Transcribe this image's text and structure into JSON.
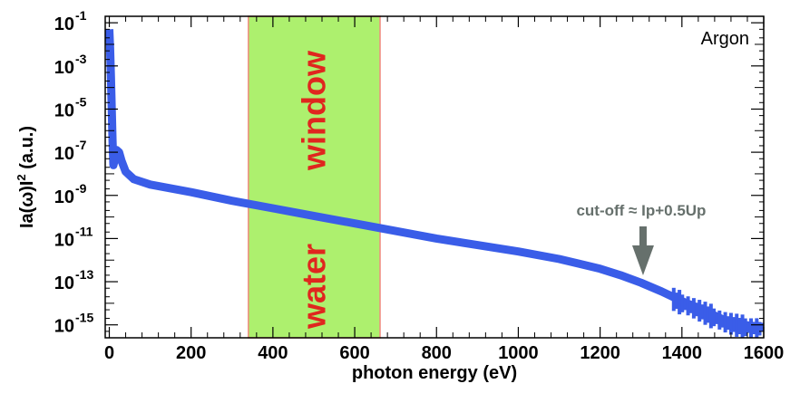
{
  "chart_data": {
    "type": "line",
    "x_label": "photon energy (eV)",
    "y_label_main": "Ia(ω)I",
    "y_label_sup": "2",
    "y_label_tail": " (a.u.)",
    "y_scale": "log",
    "xlim": [
      -10,
      1600
    ],
    "ylim_log10": [
      -15.6,
      -0.7
    ],
    "x_ticks": [
      0,
      200,
      400,
      600,
      800,
      1000,
      1200,
      1400,
      1600
    ],
    "x_tick_labels": [
      "0",
      "200",
      "400",
      "600",
      "800",
      "1000",
      "1200",
      "1400",
      "1600"
    ],
    "y_ticks_log10": [
      -1,
      -3,
      -5,
      -7,
      -9,
      -11,
      -13,
      -15
    ],
    "y_tick_labels": [
      {
        "base": "10",
        "exp": "-1"
      },
      {
        "base": "10",
        "exp": "-3"
      },
      {
        "base": "10",
        "exp": "-5"
      },
      {
        "base": "10",
        "exp": "-7"
      },
      {
        "base": "10",
        "exp": "-9"
      },
      {
        "base": "10",
        "exp": "-11"
      },
      {
        "base": "10",
        "exp": "-13"
      },
      {
        "base": "10",
        "exp": "-15"
      }
    ],
    "series": [
      {
        "color": "#3a5de8",
        "x": [
          0,
          2,
          4,
          6,
          8,
          10,
          14,
          18,
          24,
          30,
          40,
          60,
          100,
          200,
          300,
          400,
          500,
          600,
          700,
          800,
          900,
          1000,
          1100,
          1200,
          1250,
          1300,
          1350,
          1400,
          1450,
          1500,
          1550,
          1600
        ],
        "log10_y": [
          -1.3,
          -2.2,
          -3.5,
          -5.0,
          -6.5,
          -7.6,
          -7.3,
          -6.9,
          -7.0,
          -7.4,
          -7.9,
          -8.25,
          -8.5,
          -8.85,
          -9.25,
          -9.6,
          -9.95,
          -10.3,
          -10.65,
          -11.0,
          -11.3,
          -11.6,
          -11.95,
          -12.4,
          -12.7,
          -13.05,
          -13.45,
          -13.9,
          -14.3,
          -14.75,
          -15.0,
          -15.1
        ]
      }
    ],
    "band": {
      "x_start": 340,
      "x_end": 662,
      "color": "#adf06e",
      "edge_color": "#f08a80",
      "label_top": "window",
      "label_bottom": "water"
    },
    "legend_label": "Argon",
    "annotation": {
      "text": "cut-off ≈ Ip+0.5Up",
      "x": 1305,
      "arrow_color": "#66706c"
    }
  }
}
